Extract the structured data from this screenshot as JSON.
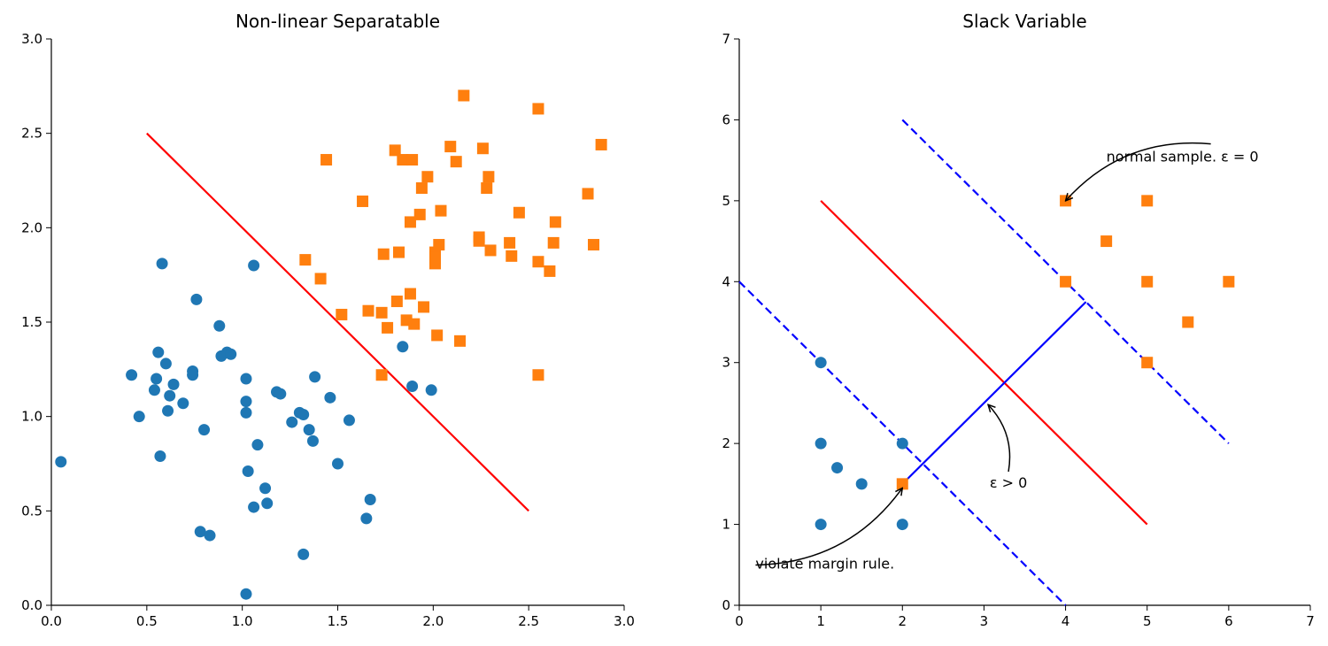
{
  "chart_data": [
    {
      "type": "scatter",
      "title": "Non-linear Separatable",
      "xlabel": "",
      "ylabel": "",
      "xlim": [
        0,
        3
      ],
      "ylim": [
        0,
        3
      ],
      "xticks": [
        "0.0",
        "0.5",
        "1.0",
        "1.5",
        "2.0",
        "2.5",
        "3.0"
      ],
      "yticks": [
        "0.0",
        "0.5",
        "1.0",
        "1.5",
        "2.0",
        "2.5",
        "3.0"
      ],
      "grid": false,
      "series": [
        {
          "marker": "circle",
          "color": "#1f77b4",
          "points": [
            [
              0.05,
              0.76
            ],
            [
              0.42,
              1.22
            ],
            [
              0.46,
              1.0
            ],
            [
              0.54,
              1.14
            ],
            [
              0.55,
              1.2
            ],
            [
              0.56,
              1.34
            ],
            [
              0.57,
              0.79
            ],
            [
              0.58,
              1.81
            ],
            [
              0.6,
              1.28
            ],
            [
              0.61,
              1.03
            ],
            [
              0.62,
              1.11
            ],
            [
              0.64,
              1.17
            ],
            [
              0.69,
              1.07
            ],
            [
              0.74,
              1.24
            ],
            [
              0.74,
              1.22
            ],
            [
              0.76,
              1.62
            ],
            [
              0.78,
              0.39
            ],
            [
              0.8,
              0.93
            ],
            [
              0.83,
              0.37
            ],
            [
              0.88,
              1.48
            ],
            [
              0.89,
              1.32
            ],
            [
              0.92,
              1.34
            ],
            [
              0.94,
              1.33
            ],
            [
              1.02,
              1.2
            ],
            [
              1.02,
              1.08
            ],
            [
              1.02,
              1.02
            ],
            [
              1.03,
              0.71
            ],
            [
              1.02,
              0.06
            ],
            [
              1.06,
              1.8
            ],
            [
              1.06,
              0.52
            ],
            [
              1.08,
              0.85
            ],
            [
              1.12,
              0.62
            ],
            [
              1.13,
              0.54
            ],
            [
              1.18,
              1.13
            ],
            [
              1.2,
              1.12
            ],
            [
              1.26,
              0.97
            ],
            [
              1.3,
              1.02
            ],
            [
              1.32,
              1.01
            ],
            [
              1.32,
              0.27
            ],
            [
              1.35,
              0.93
            ],
            [
              1.37,
              0.87
            ],
            [
              1.38,
              1.21
            ],
            [
              1.46,
              1.1
            ],
            [
              1.5,
              0.75
            ],
            [
              1.56,
              0.98
            ],
            [
              1.65,
              0.46
            ],
            [
              1.67,
              0.56
            ],
            [
              1.84,
              1.37
            ],
            [
              1.89,
              1.16
            ],
            [
              1.99,
              1.14
            ]
          ]
        },
        {
          "marker": "square",
          "color": "#ff7f0e",
          "points": [
            [
              1.33,
              1.83
            ],
            [
              1.41,
              1.73
            ],
            [
              1.44,
              2.36
            ],
            [
              1.52,
              1.54
            ],
            [
              1.63,
              2.14
            ],
            [
              1.66,
              1.56
            ],
            [
              1.73,
              1.55
            ],
            [
              1.73,
              1.22
            ],
            [
              1.74,
              1.86
            ],
            [
              1.76,
              1.47
            ],
            [
              1.8,
              2.41
            ],
            [
              1.81,
              1.61
            ],
            [
              1.82,
              1.87
            ],
            [
              1.84,
              2.36
            ],
            [
              1.86,
              1.51
            ],
            [
              1.88,
              2.03
            ],
            [
              1.88,
              1.65
            ],
            [
              1.89,
              2.36
            ],
            [
              1.9,
              1.49
            ],
            [
              1.93,
              2.07
            ],
            [
              1.94,
              2.21
            ],
            [
              1.95,
              1.58
            ],
            [
              1.97,
              2.27
            ],
            [
              2.01,
              1.87
            ],
            [
              2.01,
              1.81
            ],
            [
              2.01,
              1.84
            ],
            [
              2.02,
              1.43
            ],
            [
              2.03,
              1.91
            ],
            [
              2.04,
              2.09
            ],
            [
              2.09,
              2.43
            ],
            [
              2.12,
              2.35
            ],
            [
              2.14,
              1.4
            ],
            [
              2.16,
              2.7
            ],
            [
              2.24,
              1.95
            ],
            [
              2.24,
              1.93
            ],
            [
              2.26,
              2.42
            ],
            [
              2.28,
              2.21
            ],
            [
              2.29,
              2.27
            ],
            [
              2.3,
              1.88
            ],
            [
              2.4,
              1.92
            ],
            [
              2.41,
              1.85
            ],
            [
              2.45,
              2.08
            ],
            [
              2.55,
              1.82
            ],
            [
              2.55,
              2.63
            ],
            [
              2.55,
              1.22
            ],
            [
              2.61,
              1.77
            ],
            [
              2.63,
              1.92
            ],
            [
              2.64,
              2.03
            ],
            [
              2.81,
              2.18
            ],
            [
              2.84,
              1.91
            ],
            [
              2.88,
              2.44
            ]
          ]
        }
      ],
      "lines": [
        {
          "color": "#ff0000",
          "style": "solid",
          "points": [
            [
              0.5,
              2.5
            ],
            [
              2.5,
              0.5
            ]
          ]
        }
      ]
    },
    {
      "type": "scatter",
      "title": "Slack Variable",
      "xlabel": "",
      "ylabel": "",
      "xlim": [
        0,
        7
      ],
      "ylim": [
        0,
        7
      ],
      "xticks": [
        "0",
        "1",
        "2",
        "3",
        "4",
        "5",
        "6",
        "7"
      ],
      "yticks": [
        "0",
        "1",
        "2",
        "3",
        "4",
        "5",
        "6",
        "7"
      ],
      "grid": false,
      "series": [
        {
          "marker": "circle",
          "color": "#1f77b4",
          "points": [
            [
              1,
              3
            ],
            [
              1,
              2
            ],
            [
              1.2,
              1.7
            ],
            [
              1.5,
              1.5
            ],
            [
              1,
              1
            ],
            [
              2,
              2
            ],
            [
              2,
              1
            ]
          ]
        },
        {
          "marker": "square",
          "color": "#ff7f0e",
          "points": [
            [
              2,
              1.5
            ],
            [
              4,
              5
            ],
            [
              5,
              5
            ],
            [
              4.5,
              4.5
            ],
            [
              4,
              4
            ],
            [
              5,
              4
            ],
            [
              6,
              4
            ],
            [
              5.5,
              3.5
            ],
            [
              5,
              3
            ]
          ]
        }
      ],
      "lines": [
        {
          "color": "#ff0000",
          "style": "solid",
          "points": [
            [
              1,
              5
            ],
            [
              5,
              1
            ]
          ]
        },
        {
          "color": "#0000ff",
          "style": "dashed",
          "points": [
            [
              0,
              4
            ],
            [
              4,
              0
            ]
          ]
        },
        {
          "color": "#0000ff",
          "style": "dashed",
          "points": [
            [
              2,
              6
            ],
            [
              6,
              2
            ]
          ]
        },
        {
          "color": "#0000ff",
          "style": "solid",
          "points": [
            [
              2,
              1.5
            ],
            [
              4.25,
              3.75
            ]
          ]
        }
      ],
      "annotations": [
        {
          "text": "normal sample. ε = 0",
          "text_pos": [
            4.5,
            5.55
          ],
          "arrow_to": [
            4,
            5
          ],
          "align": "start"
        },
        {
          "text": "ε > 0",
          "text_pos": [
            3.3,
            1.52
          ],
          "arrow_to": [
            3.05,
            2.48
          ],
          "align": "middle"
        },
        {
          "text": "violate margin rule.",
          "text_pos": [
            0.2,
            0.52
          ],
          "arrow_to": [
            2,
            1.45
          ],
          "align": "start"
        }
      ]
    }
  ]
}
